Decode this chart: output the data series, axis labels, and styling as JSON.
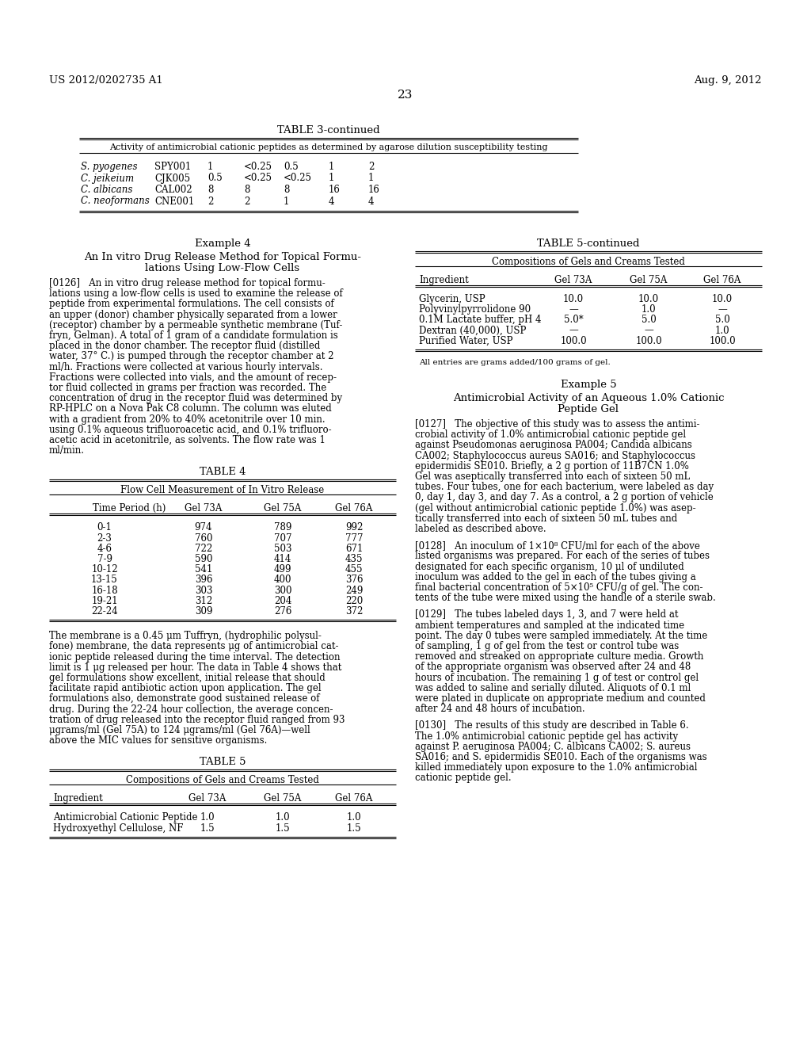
{
  "background_color": "#ffffff",
  "header_left": "US 2012/0202735 A1",
  "header_right": "Aug. 9, 2012",
  "page_number": "23",
  "table3_title": "TABLE 3-continued",
  "table3_subtitle": "Activity of antimicrobial cationic peptides as determined by agarose dilution susceptibility testing",
  "table3_rows": [
    [
      "S. pyogenes",
      "SPY001",
      "1",
      "<0.25",
      "0.5",
      "1",
      "2"
    ],
    [
      "C. jeikeium",
      "CJK005",
      "0.5",
      "<0.25",
      "<0.25",
      "1",
      "1"
    ],
    [
      "C. albicans",
      "CAL002",
      "8",
      "8",
      "8",
      "16",
      "16"
    ],
    [
      "C. neoformans",
      "CNE001",
      "2",
      "2",
      "1",
      "4",
      "4"
    ]
  ],
  "example4_title": "Example 4",
  "example4_subtitle1": "An In vitro Drug Release Method for Topical Formu-",
  "example4_subtitle2": "lations Using Low-Flow Cells",
  "table4_title": "TABLE 4",
  "table4_subtitle": "Flow Cell Measurement of In Vitro Release",
  "table4_headers": [
    "Time Period (h)",
    "Gel 73A",
    "Gel 75A",
    "Gel 76A"
  ],
  "table4_rows": [
    [
      "0-1",
      "974",
      "789",
      "992"
    ],
    [
      "2-3",
      "760",
      "707",
      "777"
    ],
    [
      "4-6",
      "722",
      "503",
      "671"
    ],
    [
      "7-9",
      "590",
      "414",
      "435"
    ],
    [
      "10-12",
      "541",
      "499",
      "455"
    ],
    [
      "13-15",
      "396",
      "400",
      "376"
    ],
    [
      "16-18",
      "303",
      "300",
      "249"
    ],
    [
      "19-21",
      "312",
      "204",
      "220"
    ],
    [
      "22-24",
      "309",
      "276",
      "372"
    ]
  ],
  "table5_title": "TABLE 5",
  "table5_subtitle": "Compositions of Gels and Creams Tested",
  "table5_headers": [
    "Ingredient",
    "Gel 73A",
    "Gel 75A",
    "Gel 76A"
  ],
  "table5_rows": [
    [
      "Antimicrobial Cationic Peptide",
      "1.0",
      "1.0",
      "1.0"
    ],
    [
      "Hydroxyethyl Cellulose, NF",
      "1.5",
      "1.5",
      "1.5"
    ]
  ],
  "table5cont_title": "TABLE 5-continued",
  "table5cont_subtitle": "Compositions of Gels and Creams Tested",
  "table5cont_headers": [
    "Ingredient",
    "Gel 73A",
    "Gel 75A",
    "Gel 76A"
  ],
  "table5cont_rows": [
    [
      "Glycerin, USP",
      "10.0",
      "10.0",
      "10.0"
    ],
    [
      "Polyvinylpyrrolidone 90",
      "—",
      "1.0",
      "—"
    ],
    [
      "0.1M Lactate buffer, pH 4",
      "5.0*",
      "5.0",
      "5.0"
    ],
    [
      "Dextran (40,000), USP",
      "—",
      "—",
      "1.0"
    ],
    [
      "Purified Water, USP",
      "100.0",
      "100.0",
      "100.0"
    ]
  ],
  "table5cont_footnote": "All entries are grams added/100 grams of gel.",
  "example5_title": "Example 5",
  "example5_subtitle1": "Antimicrobial Activity of an Aqueous 1.0% Cationic",
  "example5_subtitle2": "Peptide Gel",
  "left_para126_lines": [
    "[0126]   An in vitro drug release method for topical formu-",
    "lations using a low-flow cells is used to examine the release of",
    "peptide from experimental formulations. The cell consists of",
    "an upper (donor) chamber physically separated from a lower",
    "(receptor) chamber by a permeable synthetic membrane (Tuf-",
    "fryn, Gelman). A total of 1 gram of a candidate formulation is",
    "placed in the donor chamber. The receptor fluid (distilled",
    "water, 37° C.) is pumped through the receptor chamber at 2",
    "ml/h. Fractions were collected at various hourly intervals.",
    "Fractions were collected into vials, and the amount of recep-",
    "tor fluid collected in grams per fraction was recorded. The",
    "concentration of drug in the receptor fluid was determined by",
    "RP-HPLC on a Nova Pak C8 column. The column was eluted",
    "with a gradient from 20% to 40% acetonitrile over 10 min.",
    "using 0.1% aqueous trifluoroacetic acid, and 0.1% trifluoro-",
    "acetic acid in acetonitrile, as solvents. The flow rate was 1",
    "ml/min."
  ],
  "mem_lines": [
    "The membrane is a 0.45 μm Tuffryn, (hydrophilic polysul-",
    "fone) membrane, the data represents μg of antimicrobial cat-",
    "ionic peptide released during the time interval. The detection",
    "limit is 1 μg released per hour. The data in Table 4 shows that",
    "gel formulations show excellent, initial release that should",
    "facilitate rapid antibiotic action upon application. The gel",
    "formulations also, demonstrate good sustained release of",
    "drug. During the 22-24 hour collection, the average concen-",
    "tration of drug released into the receptor fluid ranged from 93",
    "μgrams/ml (Gel 75A) to 124 μgrams/ml (Gel 76A)—well",
    "above the MIC values for sensitive organisms."
  ],
  "right_para127_lines": [
    "[0127]   The objective of this study was to assess the antimi-",
    "crobial activity of 1.0% antimicrobial cationic peptide gel",
    "against Pseudomonas aeruginosa PA004; Candida albicans",
    "CA002; Staphylococcus aureus SA016; and Staphylococcus",
    "epidermidis SE010. Briefly, a 2 g portion of 11B7CN 1.0%",
    "Gel was aseptically transferred into each of sixteen 50 mL",
    "tubes. Four tubes, one for each bacterium, were labeled as day",
    "0, day 1, day 3, and day 7. As a control, a 2 g portion of vehicle",
    "(gel without antimicrobial cationic peptide 1.0%) was asep-",
    "tically transferred into each of sixteen 50 mL tubes and",
    "labeled as described above."
  ],
  "right_para128_lines": [
    "[0128]   An inoculum of 1×10⁸ CFU/ml for each of the above",
    "listed organisms was prepared. For each of the series of tubes",
    "designated for each specific organism, 10 μl of undiluted",
    "inoculum was added to the gel in each of the tubes giving a",
    "final bacterial concentration of 5×10⁵ CFU/g of gel. The con-",
    "tents of the tube were mixed using the handle of a sterile swab."
  ],
  "right_para129_lines": [
    "[0129]   The tubes labeled days 1, 3, and 7 were held at",
    "ambient temperatures and sampled at the indicated time",
    "point. The day 0 tubes were sampled immediately. At the time",
    "of sampling, 1 g of gel from the test or control tube was",
    "removed and streaked on appropriate culture media. Growth",
    "of the appropriate organism was observed after 24 and 48",
    "hours of incubation. The remaining 1 g of test or control gel",
    "was added to saline and serially diluted. Aliquots of 0.1 ml",
    "were plated in duplicate on appropriate medium and counted",
    "after 24 and 48 hours of incubation."
  ],
  "right_para130_lines": [
    "[0130]   The results of this study are described in Table 6.",
    "The 1.0% antimicrobial cationic peptide gel has activity",
    "against P. aeruginosa PA004; C. albicans CA002; S. aureus",
    "SA016; and S. epidermidis SE010. Each of the organisms was",
    "killed immediately upon exposure to the 1.0% antimicrobial",
    "cationic peptide gel."
  ]
}
